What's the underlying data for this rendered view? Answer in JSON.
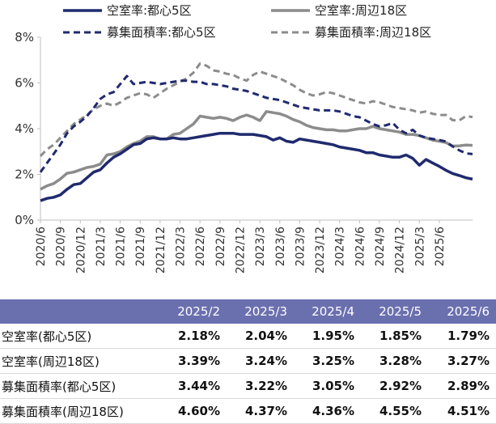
{
  "chart_data": {
    "type": "line",
    "title": "",
    "xlabel": "",
    "ylabel": "",
    "ylim": [
      0,
      8
    ],
    "y_ticks": [
      "0%",
      "2%",
      "4%",
      "6%",
      "8%"
    ],
    "x_tick_labels": [
      "2020/6",
      "2020/9",
      "2020/12",
      "2021/3",
      "2021/6",
      "2021/9",
      "2021/12",
      "2022/3",
      "2022/6",
      "2022/9",
      "2022/12",
      "2023/3",
      "2023/6",
      "2023/9",
      "2023/12",
      "2024/3",
      "2024/6",
      "2024/9",
      "2024/12",
      "2025/3",
      "2025/6"
    ],
    "grid": false,
    "legend_position": "top",
    "x_start": "2020/6",
    "series": [
      {
        "name": "空室率:都心5区",
        "color": "#1f2a6e",
        "style": "solid",
        "values": [
          0.85,
          0.95,
          1.0,
          1.1,
          1.35,
          1.55,
          1.6,
          1.85,
          2.1,
          2.2,
          2.5,
          2.75,
          2.9,
          3.1,
          3.3,
          3.35,
          3.55,
          3.6,
          3.55,
          3.55,
          3.6,
          3.55,
          3.55,
          3.6,
          3.65,
          3.7,
          3.75,
          3.8,
          3.8,
          3.8,
          3.75,
          3.75,
          3.75,
          3.7,
          3.65,
          3.5,
          3.6,
          3.45,
          3.4,
          3.55,
          3.5,
          3.45,
          3.4,
          3.35,
          3.3,
          3.2,
          3.15,
          3.1,
          3.05,
          2.95,
          2.95,
          2.85,
          2.8,
          2.75,
          2.75,
          2.85,
          2.7,
          2.4,
          2.65,
          2.5,
          2.35,
          2.18,
          2.04,
          1.95,
          1.85,
          1.79
        ]
      },
      {
        "name": "空室率:周辺18区",
        "color": "#8c8c8c",
        "style": "solid",
        "values": [
          1.35,
          1.5,
          1.6,
          1.8,
          2.05,
          2.1,
          2.2,
          2.3,
          2.35,
          2.45,
          2.85,
          2.9,
          3.0,
          3.2,
          3.35,
          3.45,
          3.65,
          3.65,
          3.55,
          3.55,
          3.75,
          3.8,
          4.0,
          4.2,
          4.55,
          4.5,
          4.45,
          4.5,
          4.45,
          4.35,
          4.5,
          4.6,
          4.5,
          4.35,
          4.75,
          4.7,
          4.65,
          4.55,
          4.4,
          4.3,
          4.15,
          4.05,
          4.0,
          3.95,
          3.95,
          3.9,
          3.9,
          3.95,
          4.0,
          4.0,
          4.1,
          4.0,
          3.95,
          3.9,
          3.85,
          3.75,
          3.75,
          3.7,
          3.6,
          3.5,
          3.45,
          3.39,
          3.24,
          3.25,
          3.28,
          3.27
        ]
      },
      {
        "name": "募集面積率:都心5区",
        "color": "#1f2a6e",
        "style": "dash",
        "values": [
          2.1,
          2.5,
          2.9,
          3.3,
          3.8,
          4.1,
          4.3,
          4.55,
          4.9,
          5.3,
          5.5,
          5.6,
          5.95,
          6.3,
          5.95,
          6.0,
          6.05,
          6.0,
          5.95,
          6.0,
          6.05,
          6.1,
          6.1,
          6.05,
          6.05,
          5.95,
          5.95,
          5.9,
          5.85,
          5.75,
          5.7,
          5.65,
          5.55,
          5.45,
          5.35,
          5.3,
          5.25,
          5.15,
          5.05,
          4.95,
          4.9,
          4.85,
          4.8,
          4.8,
          4.8,
          4.75,
          4.65,
          4.55,
          4.5,
          4.35,
          4.2,
          4.1,
          4.15,
          4.25,
          3.95,
          3.8,
          3.95,
          3.7,
          3.6,
          3.55,
          3.5,
          3.44,
          3.22,
          3.05,
          2.92,
          2.89
        ]
      },
      {
        "name": "募集面積率:周辺18区",
        "color": "#8c8c8c",
        "style": "dash",
        "values": [
          2.8,
          3.1,
          3.3,
          3.6,
          3.9,
          4.2,
          4.4,
          4.6,
          4.85,
          5.0,
          5.1,
          5.0,
          5.15,
          5.35,
          5.45,
          5.55,
          5.5,
          5.35,
          5.55,
          5.75,
          5.9,
          6.05,
          6.2,
          6.45,
          6.85,
          6.75,
          6.55,
          6.5,
          6.4,
          6.35,
          6.2,
          6.1,
          6.35,
          6.5,
          6.4,
          6.3,
          6.2,
          6.05,
          5.9,
          5.7,
          5.55,
          5.45,
          5.5,
          5.6,
          5.55,
          5.45,
          5.35,
          5.25,
          5.15,
          5.1,
          5.2,
          5.15,
          5.05,
          4.95,
          4.9,
          4.85,
          4.8,
          4.7,
          4.75,
          4.65,
          4.6,
          4.6,
          4.37,
          4.36,
          4.55,
          4.51
        ]
      }
    ]
  },
  "table": {
    "columns": [
      "2025/2",
      "2025/3",
      "2025/4",
      "2025/5",
      "2025/6"
    ],
    "rows": [
      {
        "label": "空室率(都心5区)",
        "values": [
          "2.18%",
          "2.04%",
          "1.95%",
          "1.85%",
          "1.79%"
        ]
      },
      {
        "label": "空室率(周辺18区)",
        "values": [
          "3.39%",
          "3.24%",
          "3.25%",
          "3.28%",
          "3.27%"
        ]
      },
      {
        "label": "募集面積率(都心5区)",
        "values": [
          "3.44%",
          "3.22%",
          "3.05%",
          "2.92%",
          "2.89%"
        ]
      },
      {
        "label": "募集面積率(周辺18区)",
        "values": [
          "4.60%",
          "4.37%",
          "4.36%",
          "4.55%",
          "4.51%"
        ]
      }
    ]
  }
}
